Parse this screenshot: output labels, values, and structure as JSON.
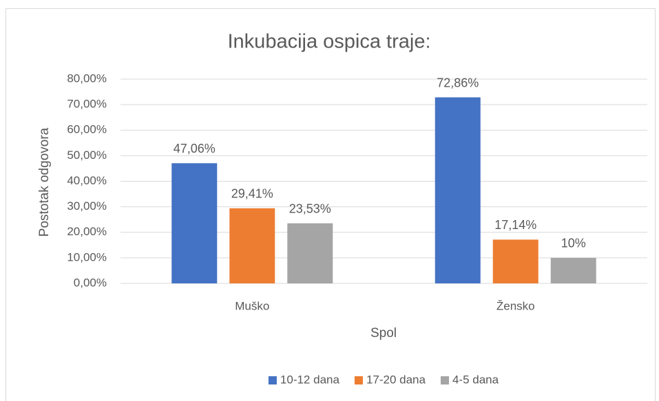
{
  "chart_data": {
    "type": "bar",
    "title": "Inkubacija ospica traje:",
    "x_label": "Spol",
    "y_label": "Postotak odgovora",
    "categories": [
      "Muško",
      "Žensko"
    ],
    "series": [
      {
        "name": "10-12 dana",
        "color": "#4472c4",
        "values": [
          47.06,
          72.86
        ],
        "value_labels": [
          "47,06%",
          "72,86%"
        ]
      },
      {
        "name": "17-20 dana",
        "color": "#ed7d31",
        "values": [
          29.41,
          17.14
        ],
        "value_labels": [
          "29,41%",
          "17,14%"
        ]
      },
      {
        "name": "4-5 dana",
        "color": "#a5a5a5",
        "values": [
          23.53,
          10
        ],
        "value_labels": [
          "23,53%",
          "10%"
        ]
      }
    ],
    "ylim": [
      0,
      80
    ],
    "yticks": [
      {
        "value": 0,
        "label": "0,00%"
      },
      {
        "value": 10,
        "label": "10,00%"
      },
      {
        "value": 20,
        "label": "20,00%"
      },
      {
        "value": 30,
        "label": "30,00%"
      },
      {
        "value": 40,
        "label": "40,00%"
      },
      {
        "value": 50,
        "label": "50,00%"
      },
      {
        "value": 60,
        "label": "60,00%"
      },
      {
        "value": 70,
        "label": "70,00%"
      },
      {
        "value": 80,
        "label": "80,00%"
      }
    ],
    "grid": true,
    "legend": "bottom"
  }
}
